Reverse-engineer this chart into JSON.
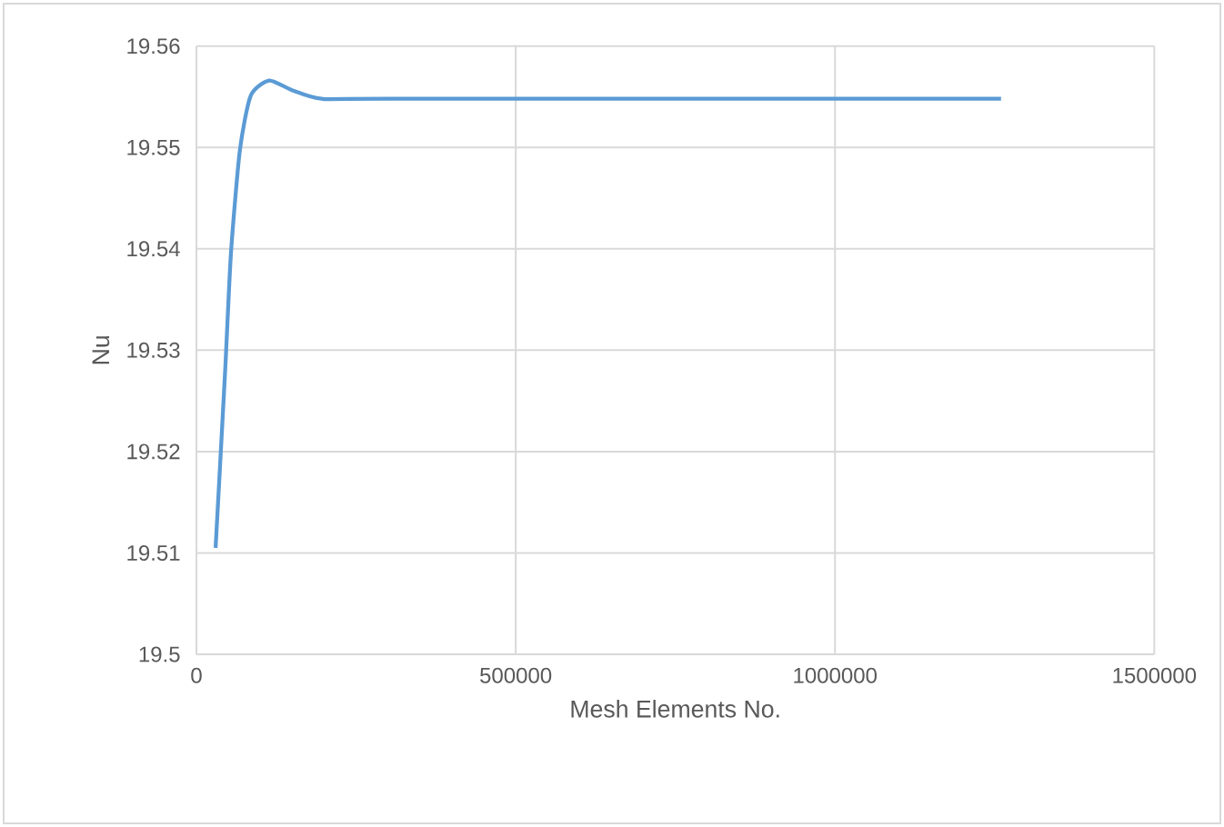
{
  "chart_data": {
    "type": "line",
    "xlabel": "Mesh  Elements No.",
    "ylabel": "Nu",
    "x": [
      30000,
      45000,
      54000,
      68000,
      85000,
      114000,
      148000,
      196000,
      300000,
      1260000
    ],
    "values": [
      19.5105,
      19.528,
      19.5395,
      19.5497,
      19.5551,
      19.5566,
      19.5557,
      19.5548,
      19.5548,
      19.5548
    ],
    "color": "#5b9bd5",
    "xlim": [
      0,
      1500000
    ],
    "xticks": [
      0,
      500000,
      1000000,
      1500000
    ],
    "ylim": [
      19.5,
      19.56
    ],
    "yticks": [
      19.5,
      19.51,
      19.52,
      19.53,
      19.54,
      19.55,
      19.56
    ],
    "grid": true,
    "marker": "none",
    "line_style": "solid"
  }
}
